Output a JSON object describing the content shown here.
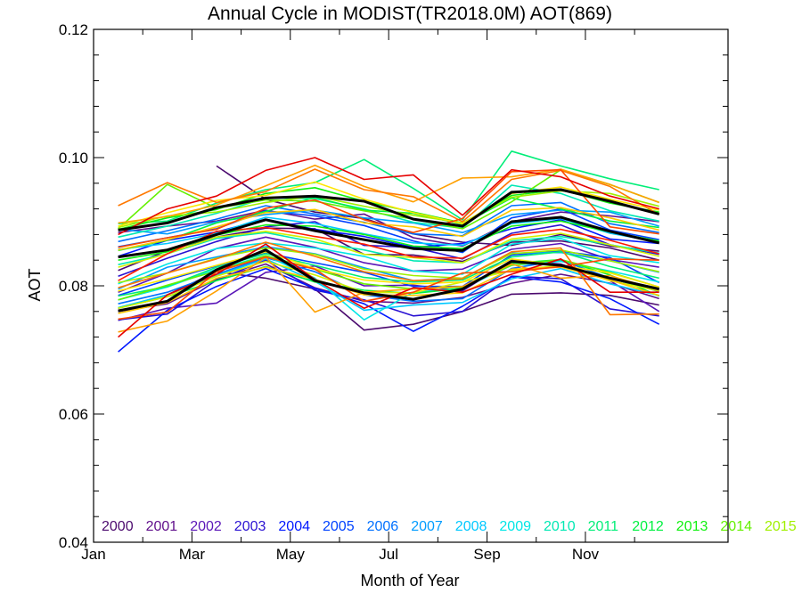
{
  "chart_data": {
    "type": "line",
    "title": "Annual Cycle in MODIST(TR2018.0M) AOT(869)",
    "xlabel": "Month of Year",
    "ylabel": "AOT",
    "xlim": [
      1,
      12
    ],
    "ylim": [
      0.04,
      0.12
    ],
    "xticks": [
      {
        "value": 1,
        "label": "Jan"
      },
      {
        "value": 3,
        "label": "Mar"
      },
      {
        "value": 5,
        "label": "May"
      },
      {
        "value": 7,
        "label": "Jul"
      },
      {
        "value": 9,
        "label": "Sep"
      },
      {
        "value": 11,
        "label": "Nov"
      }
    ],
    "yticks": [
      {
        "value": 0.04,
        "label": "0.04"
      },
      {
        "value": 0.06,
        "label": "0.06"
      },
      {
        "value": 0.08,
        "label": "0.08"
      },
      {
        "value": 0.1,
        "label": "0.10"
      },
      {
        "value": 0.12,
        "label": "0.12"
      }
    ],
    "x": [
      1.5,
      2.5,
      3.5,
      4.5,
      5.5,
      6.5,
      7.5,
      8.5,
      9.5,
      10.5,
      11.5,
      12.5
    ],
    "legend_placement": "bottom",
    "legend": [
      {
        "label": "2000",
        "color": "#4b0a6e"
      },
      {
        "label": "2001",
        "color": "#61108c"
      },
      {
        "label": "2002",
        "color": "#5a16b8"
      },
      {
        "label": "2003",
        "color": "#2a12d2"
      },
      {
        "label": "2004",
        "color": "#0018ff"
      },
      {
        "label": "2005",
        "color": "#0042ff"
      },
      {
        "label": "2006",
        "color": "#0070ff"
      },
      {
        "label": "2007",
        "color": "#009cff"
      },
      {
        "label": "2008",
        "color": "#00c8ff"
      },
      {
        "label": "2009",
        "color": "#00e6e6"
      },
      {
        "label": "2010",
        "color": "#00e8b4"
      },
      {
        "label": "2011",
        "color": "#00ee78"
      },
      {
        "label": "2012",
        "color": "#00f040"
      },
      {
        "label": "2013",
        "color": "#10f010"
      },
      {
        "label": "2014",
        "color": "#64f000"
      },
      {
        "label": "2015",
        "color": "#a0f000"
      }
    ],
    "series": [
      {
        "color": "#4b0a6e",
        "values": [
          null,
          null,
          0.0987,
          0.0935,
          0.0915,
          0.0905,
          0.0881,
          0.0868,
          0.0863,
          0.088,
          0.0862,
          0.0854
        ]
      },
      {
        "color": "#4b0a6e",
        "values": [
          0.0824,
          0.0855,
          0.0876,
          0.089,
          0.0889,
          0.0849,
          0.0848,
          0.0838,
          0.0868,
          0.087,
          0.0859,
          0.084
        ]
      },
      {
        "color": "#4b0a6e",
        "values": [
          0.0765,
          0.0786,
          0.0822,
          0.0812,
          0.0795,
          0.0731,
          0.074,
          0.076,
          0.0787,
          0.0789,
          0.0785,
          0.077
        ]
      },
      {
        "color": "#61108c",
        "values": [
          0.0883,
          0.0893,
          0.0901,
          0.0918,
          0.0904,
          0.0912,
          0.0875,
          0.0862,
          0.09,
          0.0915,
          0.0909,
          0.09
        ]
      },
      {
        "color": "#61108c",
        "values": [
          0.076,
          0.0772,
          0.081,
          0.0834,
          0.0797,
          0.0776,
          0.0773,
          0.0782,
          0.0804,
          0.0818,
          0.0804,
          0.078
        ]
      },
      {
        "color": "#5a16b8",
        "values": [
          0.079,
          0.082,
          0.0858,
          0.0876,
          0.086,
          0.0836,
          0.0823,
          0.0826,
          0.0857,
          0.0866,
          0.0841,
          0.0829
        ]
      },
      {
        "color": "#5a16b8",
        "values": [
          0.0746,
          0.0765,
          0.0773,
          0.0821,
          0.0831,
          0.08,
          0.0801,
          0.0792,
          0.084,
          0.0834,
          0.0808,
          0.076
        ]
      },
      {
        "color": "#2a12d2",
        "values": [
          0.0815,
          0.0843,
          0.0869,
          0.0892,
          0.09,
          0.0863,
          0.086,
          0.0842,
          0.0882,
          0.0895,
          0.0864,
          0.0849
        ]
      },
      {
        "color": "#2a12d2",
        "values": [
          0.0747,
          0.0756,
          0.0809,
          0.084,
          0.0793,
          0.0778,
          0.0753,
          0.076,
          0.0815,
          0.0811,
          0.0764,
          0.0753
        ]
      },
      {
        "color": "#0018ff",
        "values": [
          0.0697,
          0.0762,
          0.0799,
          0.0827,
          0.0796,
          0.0772,
          0.0729,
          0.0768,
          0.0814,
          0.0806,
          0.078,
          0.074
        ]
      },
      {
        "color": "#0018ff",
        "values": [
          0.0846,
          0.0871,
          0.0884,
          0.0904,
          0.0888,
          0.0877,
          0.086,
          0.0866,
          0.0889,
          0.0903,
          0.0873,
          0.0866
        ]
      },
      {
        "color": "#0042ff",
        "values": [
          0.0785,
          0.0809,
          0.0831,
          0.0851,
          0.0836,
          0.0821,
          0.0799,
          0.0799,
          0.0848,
          0.0854,
          0.0844,
          0.0805
        ]
      },
      {
        "color": "#0042ff",
        "values": [
          0.0861,
          0.0875,
          0.0889,
          0.0917,
          0.0909,
          0.0894,
          0.087,
          0.0852,
          0.0906,
          0.092,
          0.0887,
          0.0872
        ]
      },
      {
        "color": "#0070ff",
        "values": [
          0.0772,
          0.079,
          0.0818,
          0.0844,
          0.0822,
          0.0786,
          0.0776,
          0.078,
          0.0827,
          0.084,
          0.0812,
          0.0791
        ]
      },
      {
        "color": "#0070ff",
        "values": [
          0.0869,
          0.0886,
          0.0904,
          0.0925,
          0.0912,
          0.0899,
          0.0881,
          0.0878,
          0.0925,
          0.093,
          0.0897,
          0.0883
        ]
      },
      {
        "color": "#009cff",
        "values": [
          0.0795,
          0.0829,
          0.0845,
          0.0861,
          0.085,
          0.0828,
          0.0808,
          0.0812,
          0.0851,
          0.0852,
          0.0839,
          0.0821
        ]
      },
      {
        "color": "#009cff",
        "values": [
          0.0888,
          0.0881,
          0.09,
          0.0911,
          0.0918,
          0.0906,
          0.0898,
          0.0883,
          0.0911,
          0.0918,
          0.0915,
          0.0893
        ]
      },
      {
        "color": "#00c8ff",
        "values": [
          0.0766,
          0.0786,
          0.0816,
          0.0842,
          0.0807,
          0.0762,
          0.077,
          0.0774,
          0.0811,
          0.0827,
          0.0803,
          0.0785
        ]
      },
      {
        "color": "#00c8ff",
        "values": [
          0.0857,
          0.0866,
          0.0882,
          0.0907,
          0.0897,
          0.0881,
          0.0867,
          0.0863,
          0.0897,
          0.0905,
          0.0882,
          0.0868
        ]
      },
      {
        "color": "#00e6e6",
        "values": [
          0.0803,
          0.0834,
          0.0858,
          0.0867,
          0.0859,
          0.0846,
          0.0823,
          0.0818,
          0.0865,
          0.0874,
          0.0847,
          0.0836
        ]
      },
      {
        "color": "#00e6e6",
        "values": [
          0.0778,
          0.0798,
          0.0826,
          0.0847,
          0.0812,
          0.0747,
          0.079,
          0.0796,
          0.0832,
          0.0838,
          0.0823,
          0.0806
        ]
      },
      {
        "color": "#00e8b4",
        "values": [
          0.0876,
          0.0893,
          0.0913,
          0.0937,
          0.0936,
          0.092,
          0.0899,
          0.089,
          0.0957,
          0.0944,
          0.0917,
          0.0901
        ]
      },
      {
        "color": "#00e8b4",
        "values": [
          0.0833,
          0.085,
          0.0874,
          0.0883,
          0.0868,
          0.0856,
          0.0839,
          0.0836,
          0.087,
          0.0877,
          0.0864,
          0.0851
        ]
      },
      {
        "color": "#00ee78",
        "values": [
          0.0897,
          0.0901,
          0.0929,
          0.095,
          0.0961,
          0.0997,
          0.0952,
          0.0903,
          0.101,
          0.0987,
          0.0967,
          0.095
        ]
      },
      {
        "color": "#00ee78",
        "values": [
          0.0784,
          0.0799,
          0.0829,
          0.085,
          0.0832,
          0.0813,
          0.0806,
          0.0809,
          0.0845,
          0.0853,
          0.083,
          0.0812
        ]
      },
      {
        "color": "#00f040",
        "values": [
          0.0855,
          0.0871,
          0.0898,
          0.0916,
          0.0938,
          0.0918,
          0.0913,
          0.0896,
          0.0937,
          0.092,
          0.0901,
          0.0891
        ]
      },
      {
        "color": "#00f040",
        "values": [
          0.0765,
          0.0783,
          0.0808,
          0.083,
          0.0806,
          0.0793,
          0.0788,
          0.0796,
          0.0835,
          0.0841,
          0.0817,
          0.0784
        ]
      },
      {
        "color": "#10f010",
        "values": [
          0.084,
          0.0853,
          0.0879,
          0.0895,
          0.0893,
          0.088,
          0.0862,
          0.0858,
          0.0893,
          0.0901,
          0.0884,
          0.087
        ]
      },
      {
        "color": "#10f010",
        "values": [
          0.0888,
          0.0906,
          0.0919,
          0.0944,
          0.0953,
          0.0932,
          0.0915,
          0.0898,
          0.0941,
          0.095,
          0.0929,
          0.0915
        ]
      },
      {
        "color": "#64f000",
        "values": [
          0.0778,
          0.0801,
          0.0823,
          0.0847,
          0.0826,
          0.0803,
          0.0795,
          0.0798,
          0.0832,
          0.0841,
          0.0821,
          0.0798
        ]
      },
      {
        "color": "#64f000",
        "values": [
          0.0889,
          0.0958,
          0.0921,
          0.0934,
          0.0932,
          0.0917,
          0.0904,
          0.0889,
          0.0931,
          0.0981,
          0.0958,
          0.093
        ]
      },
      {
        "color": "#a0f000",
        "values": [
          0.0805,
          0.082,
          0.0843,
          0.0859,
          0.0849,
          0.0826,
          0.0816,
          0.0812,
          0.085,
          0.0856,
          0.0839,
          0.0822
        ]
      },
      {
        "color": "#a0f000",
        "values": [
          0.0891,
          0.0909,
          0.0915,
          0.093,
          0.094,
          0.0924,
          0.091,
          0.0898,
          0.0938,
          0.0948,
          0.0944,
          0.0924
        ]
      },
      {
        "color": "#d2f000",
        "values": [
          0.0829,
          0.085,
          0.0876,
          0.0885,
          0.0873,
          0.0849,
          0.0844,
          0.0836,
          0.0873,
          0.0882,
          0.0864,
          0.0846
        ]
      },
      {
        "color": "#d2f000",
        "values": [
          0.0765,
          0.0783,
          0.0815,
          0.0838,
          0.0817,
          0.079,
          0.0789,
          0.0806,
          0.0824,
          0.0832,
          0.0808,
          0.0792
        ]
      },
      {
        "color": "#ffe600",
        "values": [
          0.0893,
          0.0914,
          0.0933,
          0.0941,
          0.0962,
          0.0935,
          0.0914,
          0.0897,
          0.0944,
          0.0954,
          0.0935,
          0.0918
        ]
      },
      {
        "color": "#ffe600",
        "values": [
          0.0792,
          0.0811,
          0.0832,
          0.0853,
          0.0827,
          0.0809,
          0.0803,
          0.0806,
          0.0842,
          0.0832,
          0.082,
          0.0798
        ]
      },
      {
        "color": "#ffc800",
        "values": [
          0.0856,
          0.0872,
          0.0892,
          0.0914,
          0.0919,
          0.0898,
          0.0892,
          0.0877,
          0.0918,
          0.0922,
          0.0906,
          0.0887
        ]
      },
      {
        "color": "#ffc800",
        "values": [
          0.0757,
          0.0774,
          0.0812,
          0.0829,
          0.081,
          0.0786,
          0.0785,
          0.0789,
          0.0826,
          0.0829,
          0.0809,
          0.0785
        ]
      },
      {
        "color": "#ffa000",
        "values": [
          0.0898,
          0.0908,
          0.0926,
          0.0956,
          0.0988,
          0.0955,
          0.0931,
          0.0968,
          0.097,
          0.0982,
          0.0958,
          0.093
        ]
      },
      {
        "color": "#ffa000",
        "values": [
          0.0728,
          0.0745,
          0.0792,
          0.0845,
          0.0759,
          0.079,
          0.0795,
          0.0799,
          0.0834,
          0.0812,
          0.0816,
          0.0793
        ]
      },
      {
        "color": "#ff7800",
        "values": [
          0.0925,
          0.0961,
          0.093,
          0.0947,
          0.0982,
          0.095,
          0.0939,
          0.09,
          0.0966,
          0.098,
          0.0955,
          0.0911
        ]
      },
      {
        "color": "#ff7800",
        "values": [
          0.0797,
          0.082,
          0.0842,
          0.0868,
          0.0846,
          0.0822,
          0.0808,
          0.0811,
          0.0853,
          0.0859,
          0.0755,
          0.0756
        ]
      },
      {
        "color": "#ff4a00",
        "values": [
          0.086,
          0.0875,
          0.0888,
          0.0921,
          0.0934,
          0.0903,
          0.0883,
          0.0905,
          0.0978,
          0.0981,
          0.0892,
          0.0881
        ]
      },
      {
        "color": "#ff4a00",
        "values": [
          0.0748,
          0.0759,
          0.0822,
          0.0845,
          0.0826,
          0.0776,
          0.079,
          0.082,
          0.0822,
          0.083,
          0.0842,
          0.084
        ]
      },
      {
        "color": "#ff1a00",
        "values": [
          0.0808,
          0.085,
          0.0885,
          0.0891,
          0.0877,
          0.0865,
          0.0845,
          0.0843,
          0.0879,
          0.0888,
          0.0871,
          0.085
        ]
      },
      {
        "color": "#e60000",
        "values": [
          0.088,
          0.092,
          0.094,
          0.098,
          0.1,
          0.0966,
          0.0973,
          0.091,
          0.0981,
          0.097,
          0.094,
          0.092
        ]
      },
      {
        "color": "#e60000",
        "values": [
          0.072,
          0.0786,
          0.0818,
          0.0865,
          0.081,
          0.0765,
          0.0797,
          0.079,
          0.0818,
          0.0842,
          0.079,
          0.079
        ]
      },
      {
        "color": "#000000",
        "width": 3,
        "values": [
          0.0887,
          0.0898,
          0.0922,
          0.0937,
          0.094,
          0.0932,
          0.0904,
          0.0893,
          0.0946,
          0.095,
          0.0932,
          0.0912
        ]
      },
      {
        "color": "#000000",
        "width": 3,
        "values": [
          0.0845,
          0.0856,
          0.088,
          0.0903,
          0.0886,
          0.0872,
          0.0858,
          0.0855,
          0.09,
          0.0907,
          0.0885,
          0.0867
        ]
      },
      {
        "color": "#000000",
        "width": 3,
        "values": [
          0.0761,
          0.0776,
          0.0825,
          0.0856,
          0.0808,
          0.0789,
          0.0779,
          0.0795,
          0.0838,
          0.0832,
          0.0812,
          0.0795
        ]
      }
    ]
  }
}
